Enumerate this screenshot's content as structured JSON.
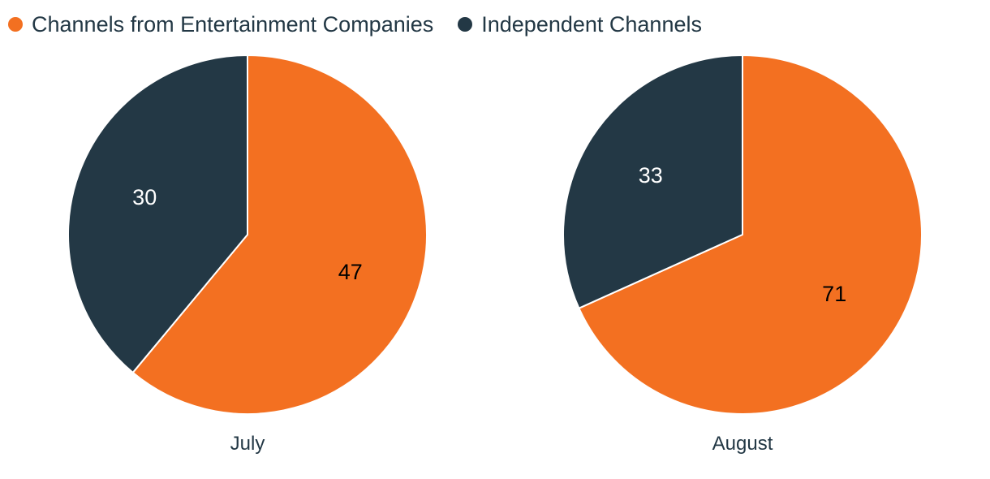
{
  "colors": {
    "entertainment": "#F37021",
    "independent": "#233845",
    "text": "#233845",
    "slice_border": "#FFFFFF",
    "background": "#FFFFFF",
    "value_on_orange": "#000000",
    "value_on_navy": "#FFFFFF"
  },
  "legend": {
    "items": [
      {
        "label": "Channels from Entertainment Companies",
        "color": "#F37021"
      },
      {
        "label": "Independent Channels",
        "color": "#233845"
      }
    ]
  },
  "chart_data": [
    {
      "type": "pie",
      "title": "July",
      "labels": [
        "Channels from Entertainment Companies",
        "Independent Channels"
      ],
      "values": [
        47,
        30
      ],
      "colors": [
        "#F37021",
        "#233845"
      ],
      "value_label_colors": [
        "#000000",
        "#FFFFFF"
      ],
      "start_angle_deg": 0,
      "direction": "clockwise",
      "legend_position": "top"
    },
    {
      "type": "pie",
      "title": "August",
      "labels": [
        "Channels from Entertainment Companies",
        "Independent Channels"
      ],
      "values": [
        71,
        33
      ],
      "colors": [
        "#F37021",
        "#233845"
      ],
      "value_label_colors": [
        "#000000",
        "#FFFFFF"
      ],
      "start_angle_deg": 0,
      "direction": "clockwise",
      "legend_position": "top"
    }
  ]
}
